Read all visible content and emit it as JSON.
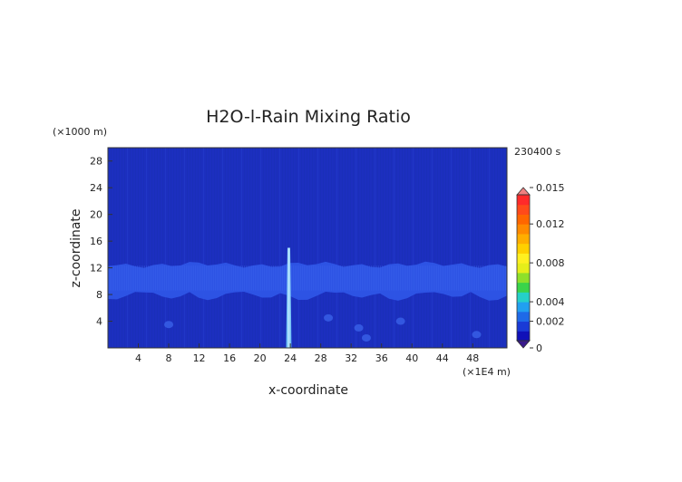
{
  "chart_data": {
    "type": "heatmap",
    "title": "H2O-l-Rain Mixing Ratio",
    "xlabel": "x-coordinate",
    "ylabel": "z-coordinate",
    "x_unit": "(×1E4 m)",
    "y_unit": "(×1000 m)",
    "time_label": "230400 s",
    "xlim": [
      0,
      52.5
    ],
    "ylim": [
      0,
      30
    ],
    "x_ticks": [
      "4",
      "8",
      "12",
      "16",
      "20",
      "24",
      "28",
      "32",
      "36",
      "40",
      "44",
      "48"
    ],
    "y_ticks": [
      "4",
      "8",
      "12",
      "16",
      "20",
      "24",
      "28"
    ],
    "colorbar": {
      "range": [
        0,
        0.015
      ],
      "tick_labels": [
        "0.015",
        "0.012",
        "0.008",
        "0.004",
        "0.002",
        "0"
      ],
      "tick_values": [
        0.015,
        0.012,
        0.008,
        0.004,
        0.002,
        0
      ],
      "colors": [
        "#3a1a8c",
        "#1010b8",
        "#1a3ad6",
        "#1e6ae8",
        "#21a0f0",
        "#25d0c8",
        "#3ad44a",
        "#8ee02a",
        "#e6ee1a",
        "#fff020",
        "#ffd000",
        "#ffae00",
        "#ff8a00",
        "#ff6600",
        "#ff4a1a",
        "#ff2a2a",
        "#f08080"
      ]
    },
    "features": {
      "background_value": 0.0004,
      "cloud_layer_z": [
        9,
        13
      ],
      "rain_column_x": 23.8,
      "rain_column_z": [
        0,
        15
      ],
      "rain_column_peak_value": 0.0025
    }
  }
}
